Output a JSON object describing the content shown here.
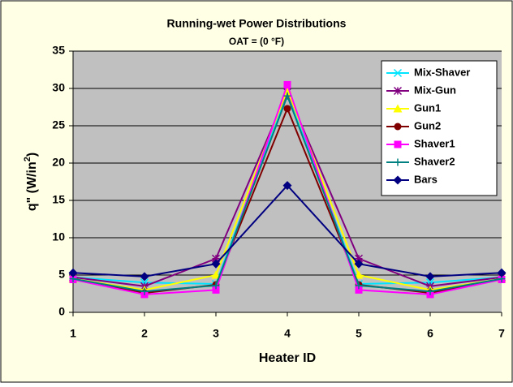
{
  "chart_data": {
    "type": "line",
    "title": "Running-wet Power Distributions",
    "subtitle": "OAT = (0 °F)",
    "x_label": "Heater ID",
    "y_label": {
      "text": "q\" (W/in",
      "superscript": "2",
      "after": ")"
    },
    "x": [
      1,
      2,
      3,
      4,
      5,
      6,
      7
    ],
    "xlim": [
      1,
      7
    ],
    "xticks": [
      1,
      2,
      3,
      4,
      5,
      6,
      7
    ],
    "ylim": [
      0,
      35
    ],
    "yticks": [
      0,
      5,
      10,
      15,
      20,
      25,
      30,
      35
    ],
    "grid": true,
    "legend": "upper right",
    "series": [
      {
        "name": "Mix-Shaver",
        "color": "#00e5ff",
        "marker": "x",
        "values": [
          4.7,
          4.0,
          3.8,
          29.5,
          3.8,
          4.0,
          4.7
        ]
      },
      {
        "name": "Mix-Gun",
        "color": "#800080",
        "marker": "star",
        "values": [
          4.7,
          3.5,
          7.2,
          29.5,
          7.2,
          3.5,
          4.7
        ]
      },
      {
        "name": "Gun1",
        "color": "#ffff00",
        "marker": "triangle",
        "values": [
          4.5,
          3.0,
          5.0,
          29.8,
          5.0,
          3.0,
          4.5
        ]
      },
      {
        "name": "Gun2",
        "color": "#800000",
        "marker": "circle",
        "values": [
          4.5,
          2.6,
          3.7,
          27.3,
          3.7,
          2.6,
          4.5
        ]
      },
      {
        "name": "Shaver1",
        "color": "#ff00ff",
        "marker": "square",
        "values": [
          4.4,
          2.4,
          3.0,
          30.5,
          3.0,
          2.4,
          4.4
        ]
      },
      {
        "name": "Shaver2",
        "color": "#008080",
        "marker": "plus",
        "values": [
          4.5,
          2.8,
          3.6,
          29.0,
          3.6,
          2.8,
          4.5
        ]
      },
      {
        "name": "Bars",
        "color": "#000080",
        "marker": "diamond",
        "values": [
          5.3,
          4.8,
          6.5,
          17.0,
          6.5,
          4.8,
          5.3
        ]
      }
    ]
  }
}
